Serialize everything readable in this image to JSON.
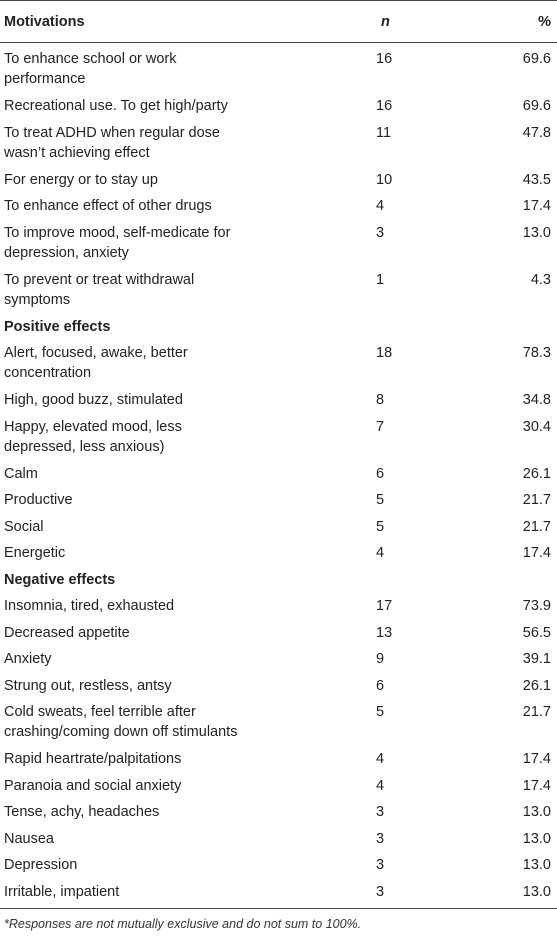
{
  "header": {
    "col1": "Motivations",
    "col2": "n",
    "col3": "%"
  },
  "rows": [
    {
      "label": "To enhance school or work performance",
      "n": "16",
      "pct": "69.6",
      "kind": "two",
      "l1": "To enhance school or work",
      "l2": "performance"
    },
    {
      "label": "Recreational use. To get high/party",
      "n": "16",
      "pct": "69.6",
      "kind": "one"
    },
    {
      "label": "To treat ADHD when regular dose wasn’t achieving effect",
      "n": "11",
      "pct": "47.8",
      "kind": "two",
      "l1": "To treat ADHD when regular dose",
      "l2": "wasn’t achieving effect"
    },
    {
      "label": "For energy or to stay up",
      "n": "10",
      "pct": "43.5",
      "kind": "one"
    },
    {
      "label": "To enhance effect of other drugs",
      "n": "4",
      "pct": "17.4",
      "kind": "one"
    },
    {
      "label": "To improve mood, self-medicate for depression, anxiety",
      "n": "3",
      "pct": "13.0",
      "kind": "two",
      "l1": "To improve mood, self-medicate for",
      "l2": "depression, anxiety"
    },
    {
      "label": "To prevent or treat withdrawal symptoms",
      "n": "1",
      "pct": "4.3",
      "kind": "two",
      "l1": "To prevent or treat withdrawal",
      "l2": "symptoms"
    },
    {
      "label": "Positive effects",
      "kind": "sec"
    },
    {
      "label": "Alert, focused, awake, better concentration",
      "n": "18",
      "pct": "78.3",
      "kind": "two",
      "l1": "Alert, focused, awake, better",
      "l2": "concentration"
    },
    {
      "label": "High, good buzz, stimulated",
      "n": "8",
      "pct": "34.8",
      "kind": "one"
    },
    {
      "label": "Happy, elevated mood, less depressed, less anxious)",
      "n": "7",
      "pct": "30.4",
      "kind": "two",
      "l1": "Happy, elevated mood, less",
      "l2": "depressed, less anxious)"
    },
    {
      "label": "Calm",
      "n": "6",
      "pct": "26.1",
      "kind": "one"
    },
    {
      "label": "Productive",
      "n": "5",
      "pct": "21.7",
      "kind": "one"
    },
    {
      "label": "Social",
      "n": "5",
      "pct": "21.7",
      "kind": "one"
    },
    {
      "label": "Energetic",
      "n": "4",
      "pct": "17.4",
      "kind": "one"
    },
    {
      "label": "Negative effects",
      "kind": "sec"
    },
    {
      "label": "Insomnia, tired, exhausted",
      "n": "17",
      "pct": "73.9",
      "kind": "one"
    },
    {
      "label": "Decreased appetite",
      "n": "13",
      "pct": "56.5",
      "kind": "one"
    },
    {
      "label": "Anxiety",
      "n": "9",
      "pct": "39.1",
      "kind": "one"
    },
    {
      "label": "Strung out, restless, antsy",
      "n": "6",
      "pct": "26.1",
      "kind": "one"
    },
    {
      "label": "Cold sweats, feel terrible after crashing/coming down off stimulants",
      "n": "5",
      "pct": "21.7",
      "kind": "two",
      "l1": "Cold sweats, feel terrible after",
      "l2": "crashing/coming down off stimulants"
    },
    {
      "label": "Rapid heartrate/palpitations",
      "n": "4",
      "pct": "17.4",
      "kind": "one"
    },
    {
      "label": "Paranoia and social anxiety",
      "n": "4",
      "pct": "17.4",
      "kind": "one"
    },
    {
      "label": "Tense, achy, headaches",
      "n": "3",
      "pct": "13.0",
      "kind": "one"
    },
    {
      "label": "Nausea",
      "n": "3",
      "pct": "13.0",
      "kind": "one"
    },
    {
      "label": "Depression",
      "n": "3",
      "pct": "13.0",
      "kind": "one"
    },
    {
      "label": "Irritable, impatient",
      "n": "3",
      "pct": "13.0",
      "kind": "one"
    }
  ],
  "footnote": "*Responses are not mutually exclusive and do not sum to 100%."
}
